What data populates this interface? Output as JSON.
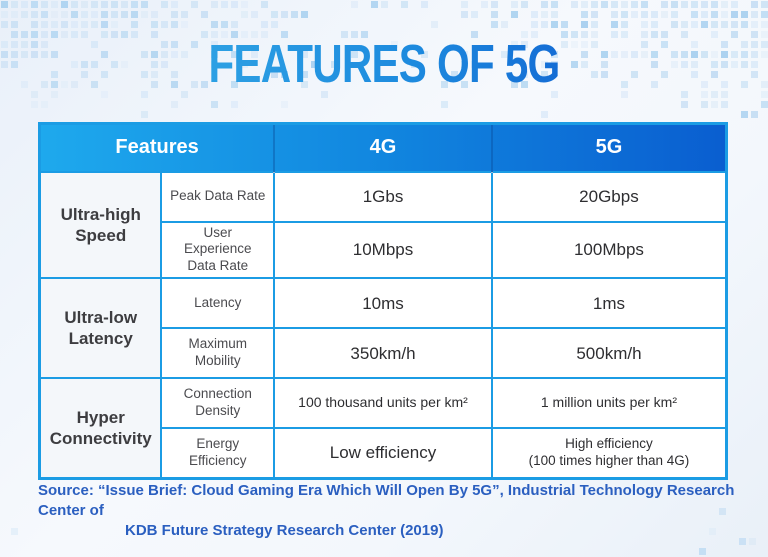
{
  "title": "FEATURES OF 5G",
  "table": {
    "header": {
      "features": "Features",
      "col4g": "4G",
      "col5g": "5G"
    },
    "groups": [
      {
        "label": "Ultra-high Speed",
        "rows": [
          {
            "feature": "Peak Data Rate",
            "g4": "1Gbs",
            "g5": "20Gbps"
          },
          {
            "feature": "User Experience Data Rate",
            "g4": "10Mbps",
            "g5": "100Mbps"
          }
        ]
      },
      {
        "label": "Ultra-low Latency",
        "rows": [
          {
            "feature": "Latency",
            "g4": "10ms",
            "g5": "1ms"
          },
          {
            "feature": "Maximum Mobility",
            "g4": "350km/h",
            "g5": "500km/h"
          }
        ]
      },
      {
        "label": "Hyper Connectivity",
        "rows": [
          {
            "feature": "Connection Density",
            "g4": "100 thousand units per km²",
            "g5": "1 million units per km²"
          },
          {
            "feature": "Energy Efficiency",
            "g4": "Low efficiency",
            "g5": "High efficiency\n(100 times higher than 4G)"
          }
        ]
      }
    ]
  },
  "source": {
    "line1": "Source: “Issue Brief: Cloud Gaming Era Which Will Open By 5G”, Industrial Technology Research Center of",
    "line2": "KDB Future Strategy Research Center (2019)"
  },
  "colors": {
    "accent_border": "#1b9ce4",
    "header_gradient_start": "#1ea9ed",
    "header_gradient_end": "#0a5ed0",
    "title_gradient_start": "#36ade7",
    "title_gradient_end": "#0d55cd",
    "source_text": "#2b5fc0",
    "group_cell_bg": "#f4f7fa"
  },
  "chart_data": {
    "type": "table",
    "title": "FEATURES OF 5G",
    "columns": [
      "Features (group)",
      "Features (item)",
      "4G",
      "5G"
    ],
    "rows": [
      [
        "Ultra-high Speed",
        "Peak Data Rate",
        "1Gbs",
        "20Gbps"
      ],
      [
        "Ultra-high Speed",
        "User Experience Data Rate",
        "10Mbps",
        "100Mbps"
      ],
      [
        "Ultra-low Latency",
        "Latency",
        "10ms",
        "1ms"
      ],
      [
        "Ultra-low Latency",
        "Maximum Mobility",
        "350km/h",
        "500km/h"
      ],
      [
        "Hyper Connectivity",
        "Connection Density",
        "100 thousand units per km²",
        "1 million units per km²"
      ],
      [
        "Hyper Connectivity",
        "Energy Efficiency",
        "Low efficiency",
        "High efficiency (100 times higher than 4G)"
      ]
    ],
    "source": "Source: “Issue Brief: Cloud Gaming Era Which Will Open By 5G”, Industrial Technology Research Center of KDB Future Strategy Research Center (2019)"
  }
}
